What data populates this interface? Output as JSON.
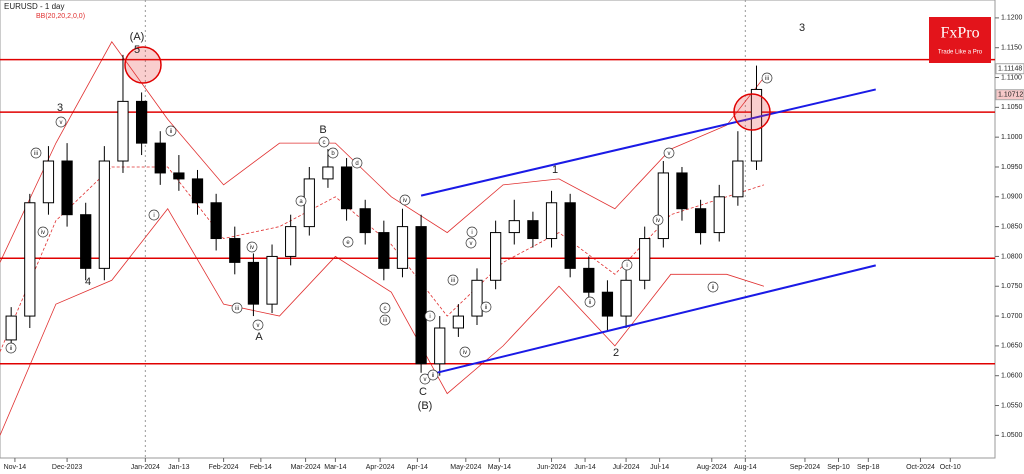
{
  "chart_data": {
    "type": "candlestick",
    "title": "EURUSD - 1 day",
    "indicator": "BB(20,20,2,0,0)",
    "xlim": [
      0,
      267
    ],
    "xticks": [
      {
        "value": 4,
        "label": "Nov-14"
      },
      {
        "value": 18,
        "label": "Dec-2023"
      },
      {
        "value": 39,
        "label": "Jan-2024"
      },
      {
        "value": 48,
        "label": "Jan-13"
      },
      {
        "value": 60,
        "label": "Feb-2024"
      },
      {
        "value": 70,
        "label": "Feb-14"
      },
      {
        "value": 82,
        "label": "Mar-2024"
      },
      {
        "value": 90,
        "label": "Mar-14"
      },
      {
        "value": 102,
        "label": "Apr-2024"
      },
      {
        "value": 112,
        "label": "Apr-14"
      },
      {
        "value": 125,
        "label": "May-2024"
      },
      {
        "value": 134,
        "label": "May-14"
      },
      {
        "value": 148,
        "label": "Jun-2024"
      },
      {
        "value": 157,
        "label": "Jun-14"
      },
      {
        "value": 168,
        "label": "Jul-2024"
      },
      {
        "value": 177,
        "label": "Jul-14"
      },
      {
        "value": 191,
        "label": "Aug-2024"
      },
      {
        "value": 200,
        "label": "Aug-14"
      },
      {
        "value": 216,
        "label": "Sep-2024"
      },
      {
        "value": 225,
        "label": "Sep-10"
      },
      {
        "value": 233,
        "label": "Sep-18"
      },
      {
        "value": 247,
        "label": "Oct-2024"
      },
      {
        "value": 255,
        "label": "Oct-10"
      }
    ],
    "ylim": [
      1.0462,
      1.123
    ],
    "yticks": [
      {
        "value": 1.05,
        "label": "1.0500"
      },
      {
        "value": 1.055,
        "label": "1.0550"
      },
      {
        "value": 1.06,
        "label": "1.0600"
      },
      {
        "value": 1.065,
        "label": "1.0650"
      },
      {
        "value": 1.07,
        "label": "1.0700"
      },
      {
        "value": 1.075,
        "label": "1.0750"
      },
      {
        "value": 1.08,
        "label": "1.0800"
      },
      {
        "value": 1.085,
        "label": "1.0850"
      },
      {
        "value": 1.09,
        "label": "1.0900"
      },
      {
        "value": 1.095,
        "label": "1.0950"
      },
      {
        "value": 1.1,
        "label": "1.1000"
      },
      {
        "value": 1.105,
        "label": "1.1050"
      },
      {
        "value": 1.11,
        "label": "1.1100"
      },
      {
        "value": 1.115,
        "label": "1.1150"
      },
      {
        "value": 1.12,
        "label": "1.1200"
      }
    ],
    "candles": {
      "x": [
        3,
        8,
        13,
        18,
        23,
        28,
        33,
        38,
        43,
        48,
        53,
        58,
        63,
        68,
        73,
        78,
        83,
        88,
        93,
        98,
        103,
        108,
        113,
        118,
        123,
        128,
        133,
        138,
        143,
        148,
        153,
        158,
        163,
        168,
        173,
        178,
        183,
        188,
        193,
        198,
        203
      ],
      "open": [
        1.066,
        1.07,
        1.089,
        1.096,
        1.087,
        1.078,
        1.096,
        1.106,
        1.099,
        1.094,
        1.093,
        1.089,
        1.083,
        1.079,
        1.072,
        1.08,
        1.085,
        1.093,
        1.095,
        1.088,
        1.084,
        1.078,
        1.085,
        1.062,
        1.068,
        1.07,
        1.076,
        1.084,
        1.086,
        1.083,
        1.089,
        1.078,
        1.074,
        1.07,
        1.076,
        1.083,
        1.094,
        1.088,
        1.084,
        1.09,
        1.096
      ],
      "high": [
        1.0715,
        1.0905,
        1.0985,
        1.099,
        1.089,
        1.0985,
        1.1138,
        1.1075,
        1.101,
        1.097,
        1.0945,
        1.0905,
        1.085,
        1.0805,
        1.082,
        1.087,
        1.095,
        1.098,
        1.0965,
        1.0895,
        1.086,
        1.088,
        1.087,
        1.07,
        1.072,
        1.078,
        1.086,
        1.0895,
        1.0875,
        1.091,
        1.0905,
        1.08,
        1.076,
        1.078,
        1.085,
        1.096,
        1.095,
        1.0895,
        1.092,
        1.101,
        1.112
      ],
      "low": [
        1.064,
        1.068,
        1.087,
        1.085,
        1.076,
        1.076,
        1.094,
        1.097,
        1.092,
        1.091,
        1.087,
        1.081,
        1.077,
        1.07,
        1.0705,
        1.0785,
        1.0835,
        1.0915,
        1.086,
        1.082,
        1.076,
        1.0765,
        1.0605,
        1.06,
        1.0665,
        1.0685,
        1.0745,
        1.082,
        1.0815,
        1.0815,
        1.0765,
        1.0725,
        1.0675,
        1.068,
        1.0745,
        1.0815,
        1.086,
        1.082,
        1.0825,
        1.0885,
        1.0945
      ],
      "close": [
        1.07,
        1.089,
        1.096,
        1.087,
        1.078,
        1.096,
        1.106,
        1.099,
        1.094,
        1.093,
        1.089,
        1.083,
        1.079,
        1.072,
        1.08,
        1.085,
        1.093,
        1.095,
        1.088,
        1.084,
        1.078,
        1.085,
        1.062,
        1.068,
        1.07,
        1.076,
        1.084,
        1.086,
        1.083,
        1.089,
        1.078,
        1.074,
        1.07,
        1.076,
        1.083,
        1.094,
        1.088,
        1.084,
        1.09,
        1.096,
        1.108
      ]
    },
    "bands": [
      {
        "color": "#e03030",
        "x": [
          0,
          15,
          30,
          45,
          60,
          75,
          90,
          105,
          120,
          135,
          150,
          165,
          180,
          195,
          205
        ],
        "values": [
          1.079,
          1.099,
          1.116,
          1.103,
          1.092,
          1.099,
          1.099,
          1.09,
          1.084,
          1.092,
          1.093,
          1.088,
          1.098,
          1.102,
          1.11
        ]
      },
      {
        "color": "#e03030",
        "x": [
          0,
          15,
          30,
          45,
          60,
          75,
          90,
          105,
          120,
          135,
          150,
          165,
          180,
          195,
          205
        ],
        "values": [
          1.05,
          1.072,
          1.076,
          1.088,
          1.072,
          1.07,
          1.08,
          1.074,
          1.057,
          1.065,
          1.075,
          1.065,
          1.077,
          1.077,
          1.075
        ]
      },
      {
        "color": "#e03030",
        "dashed": true,
        "x": [
          0,
          15,
          30,
          45,
          60,
          75,
          90,
          105,
          120,
          135,
          150,
          165,
          180,
          195,
          205
        ],
        "values": [
          1.064,
          1.086,
          1.095,
          1.095,
          1.083,
          1.085,
          1.09,
          1.082,
          1.07,
          1.079,
          1.084,
          1.077,
          1.087,
          1.09,
          1.092
        ]
      }
    ],
    "channels": [
      {
        "color": "#1a1ae6",
        "x": [
          113,
          235
        ],
        "values": [
          1.0902,
          1.108
        ]
      },
      {
        "color": "#1a1ae6",
        "x": [
          114,
          235
        ],
        "values": [
          1.06,
          1.0785
        ]
      }
    ],
    "levels": {
      "color": "#e00000",
      "values": [
        1.113,
        1.1042,
        1.0797,
        1.062
      ]
    },
    "price_labels": [
      1.11148,
      1.10712
    ],
    "annotations": [
      "(A)",
      "5",
      "3",
      "4",
      "B",
      "A",
      "C",
      "(B)",
      "1",
      "2",
      "3"
    ],
    "circled": [
      "iii",
      "iv",
      "v",
      "ii",
      "i",
      "ii",
      "iii",
      "v",
      "iv",
      "a",
      "c",
      "b",
      "d",
      "e",
      "c",
      "iii",
      "iv",
      "v",
      "i",
      "ii",
      "iv",
      "v",
      "ii",
      "i",
      "iii",
      "ii",
      "iv",
      "i",
      "v",
      "ii",
      "iii"
    ],
    "logo": {
      "brand": "FxPro",
      "tagline": "Trade Like a Pro"
    }
  }
}
